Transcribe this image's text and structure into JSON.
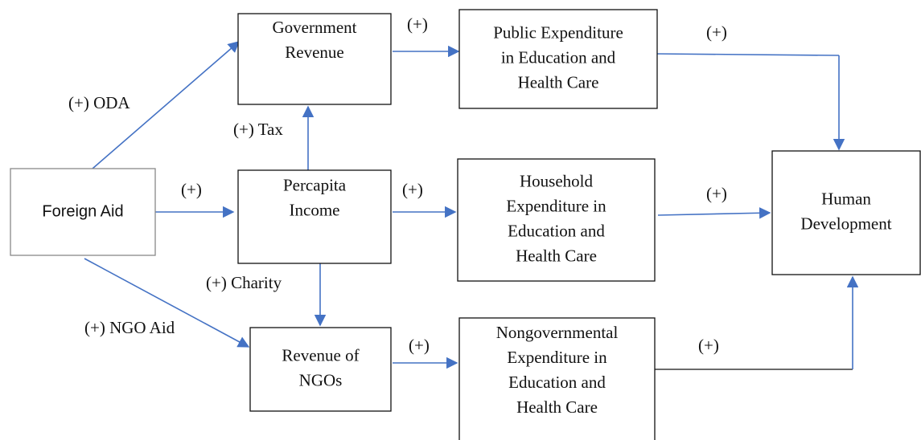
{
  "nodes": [
    {
      "id": "foreign",
      "lines": [
        "Foreign Aid"
      ]
    },
    {
      "id": "gov",
      "lines": [
        "Government",
        "Revenue"
      ]
    },
    {
      "id": "public",
      "lines": [
        "Public Expenditure",
        "in Education and",
        "Health Care"
      ]
    },
    {
      "id": "income",
      "lines": [
        "Percapita",
        "Income"
      ]
    },
    {
      "id": "household",
      "lines": [
        "Household",
        "Expenditure in",
        "Education and",
        "Health Care"
      ]
    },
    {
      "id": "human",
      "lines": [
        "Human",
        "Development"
      ]
    },
    {
      "id": "ngo",
      "lines": [
        "Revenue of",
        "NGOs"
      ]
    },
    {
      "id": "nongov",
      "lines": [
        "Nongovernmental",
        "Expenditure in",
        "Education and",
        "Health Care"
      ]
    }
  ],
  "edge_labels": [
    "(+) ODA",
    "(+)",
    "(+) NGO Aid",
    "(+) Tax",
    "(+) Charity",
    "(+)",
    "(+)",
    "(+)",
    "(+)",
    "(+)",
    "(+)"
  ]
}
